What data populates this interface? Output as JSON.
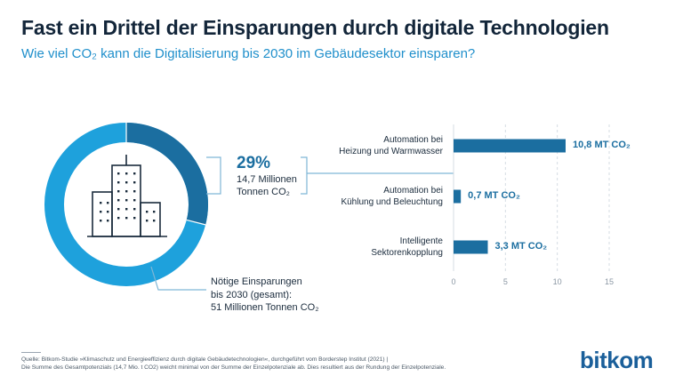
{
  "header": {
    "title": "Fast ein Drittel der Einsparungen durch digitale Technologien",
    "subtitle": "Wie viel CO₂ kann die Digitalisierung bis 2030 im Gebäudesektor einsparen?"
  },
  "donut": {
    "share_percent": 29,
    "callout_pct": "29%",
    "callout_text_line1": "14,7 Millionen",
    "callout_text_line2": "Tonnen CO₂",
    "total_line1": "Nötige Einsparungen",
    "total_line2": "bis 2030 (gesamt):",
    "total_line3": "51 Millionen Tonnen CO₂",
    "icon": "building-icon"
  },
  "chart_data": {
    "type": "bar",
    "orientation": "horizontal",
    "categories": [
      [
        "Automation bei",
        "Heizung und Warmwasser"
      ],
      [
        "Automation bei",
        "Kühlung und Beleuchtung"
      ],
      [
        "Intelligente",
        "Sektorenkopplung"
      ]
    ],
    "values": [
      10.8,
      0.7,
      3.3
    ],
    "value_labels": [
      "10,8 MT CO₂",
      "0,7 MT CO₂",
      "3,3 MT CO₂"
    ],
    "xlim": [
      0,
      15
    ],
    "xticks": [
      0,
      5,
      10,
      15
    ],
    "grid": true
  },
  "footer": {
    "source_line1": "Quelle: Bitkom-Studie »Klimaschutz und Energieeffizienz durch digitale Gebäudetechnologien«, durchgeführt vom Borderstep Institut (2021) |",
    "source_line2": "Die Summe des Gesamtpotenzials (14,7 Mio. t CO2) weicht minimal von der Summe der Einzelpotenziale ab. Dies resultiert aus der Rundung der Einzelpotenziale.",
    "logo": "bitkom"
  },
  "colors": {
    "donut_light": "#1ea1dc",
    "donut_dark": "#1b6ea0",
    "bar": "#1b6ea0",
    "connector": "#7fb6d6",
    "grid": "#d5dce3"
  }
}
